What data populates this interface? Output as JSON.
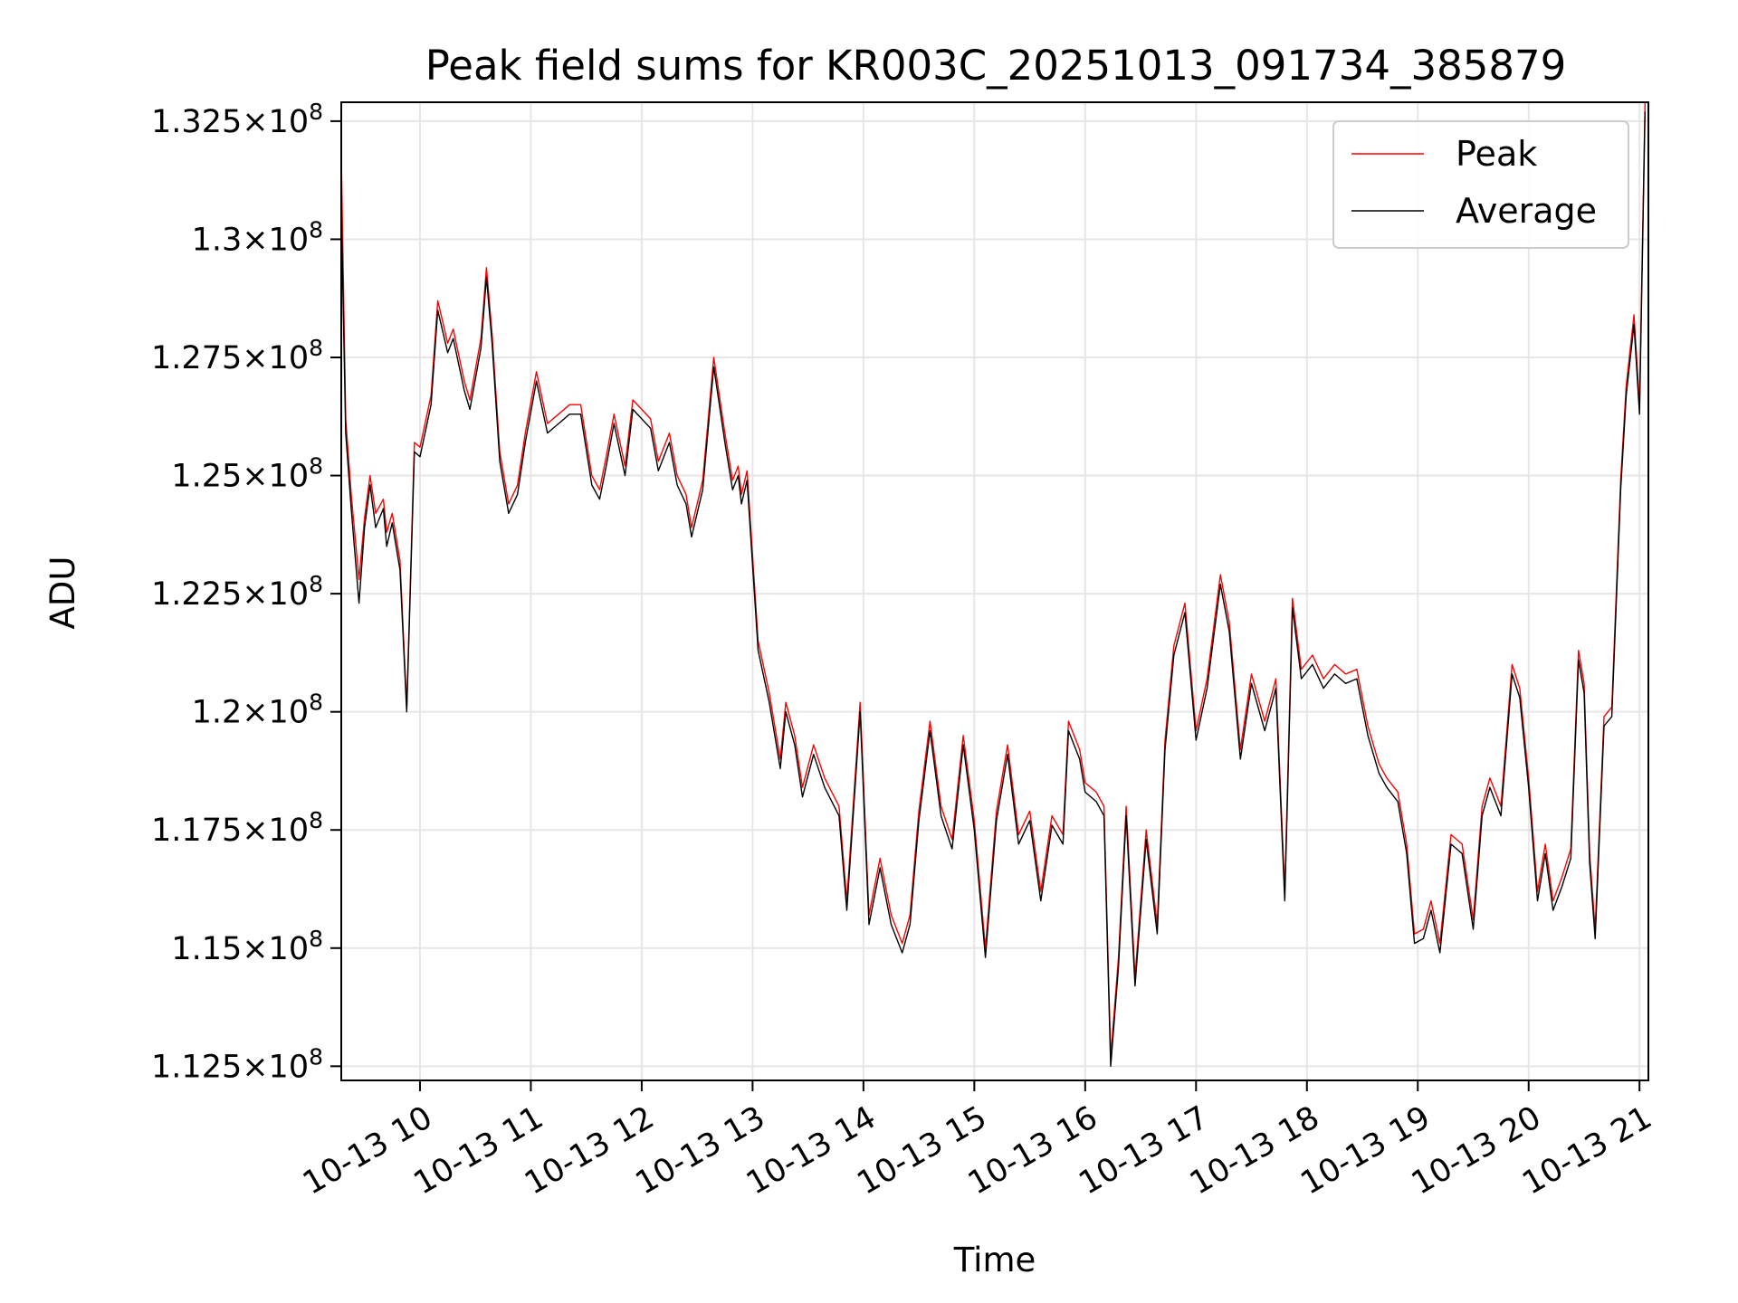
{
  "chart_data": {
    "type": "line",
    "title": "Peak field sums for KR003C_20251013_091734_385879",
    "xlabel": "Time",
    "ylabel": "ADU",
    "x_unit": "hours since 2025-10-13 00:00",
    "xlim": [
      9.29,
      21.08
    ],
    "ylim": [
      112200000,
      132900000
    ],
    "grid": true,
    "legend_position": "top-right",
    "x_ticks": [
      {
        "value": 10,
        "label": "10-13 10"
      },
      {
        "value": 11,
        "label": "10-13 11"
      },
      {
        "value": 12,
        "label": "10-13 12"
      },
      {
        "value": 13,
        "label": "10-13 13"
      },
      {
        "value": 14,
        "label": "10-13 14"
      },
      {
        "value": 15,
        "label": "10-13 15"
      },
      {
        "value": 16,
        "label": "10-13 16"
      },
      {
        "value": 17,
        "label": "10-13 17"
      },
      {
        "value": 18,
        "label": "10-13 18"
      },
      {
        "value": 19,
        "label": "10-13 19"
      },
      {
        "value": 20,
        "label": "10-13 20"
      },
      {
        "value": 21,
        "label": "10-13 21"
      }
    ],
    "y_ticks": [
      {
        "value": 112500000,
        "mantissa": "1.125"
      },
      {
        "value": 115000000,
        "mantissa": "1.15"
      },
      {
        "value": 117500000,
        "mantissa": "1.175"
      },
      {
        "value": 120000000,
        "mantissa": "1.2"
      },
      {
        "value": 122500000,
        "mantissa": "1.225"
      },
      {
        "value": 125000000,
        "mantissa": "1.25"
      },
      {
        "value": 127500000,
        "mantissa": "1.275"
      },
      {
        "value": 130000000,
        "mantissa": "1.3"
      },
      {
        "value": 132500000,
        "mantissa": "1.325"
      }
    ],
    "y_tick_suffix": "×10",
    "y_tick_exponent": "8",
    "x": [
      9.29,
      9.33,
      9.38,
      9.45,
      9.5,
      9.55,
      9.6,
      9.67,
      9.7,
      9.75,
      9.82,
      9.88,
      9.95,
      10.0,
      10.1,
      10.16,
      10.25,
      10.3,
      10.4,
      10.45,
      10.55,
      10.6,
      10.65,
      10.72,
      10.8,
      10.88,
      10.95,
      11.05,
      11.15,
      11.25,
      11.35,
      11.45,
      11.55,
      11.62,
      11.68,
      11.75,
      11.85,
      11.92,
      12.0,
      12.08,
      12.15,
      12.25,
      12.32,
      12.4,
      12.45,
      12.55,
      12.65,
      12.75,
      12.82,
      12.87,
      12.9,
      12.95,
      13.05,
      13.15,
      13.25,
      13.3,
      13.38,
      13.45,
      13.55,
      13.65,
      13.78,
      13.85,
      13.97,
      14.05,
      14.15,
      14.25,
      14.35,
      14.42,
      14.5,
      14.6,
      14.7,
      14.8,
      14.9,
      15.0,
      15.1,
      15.2,
      15.3,
      15.4,
      15.5,
      15.6,
      15.7,
      15.8,
      15.85,
      15.95,
      16.0,
      16.1,
      16.17,
      16.23,
      16.3,
      16.37,
      16.45,
      16.55,
      16.65,
      16.72,
      16.8,
      16.9,
      17.0,
      17.1,
      17.22,
      17.3,
      17.4,
      17.5,
      17.62,
      17.72,
      17.8,
      17.87,
      17.95,
      18.05,
      18.15,
      18.25,
      18.35,
      18.45,
      18.55,
      18.65,
      18.72,
      18.82,
      18.9,
      18.97,
      19.05,
      19.12,
      19.2,
      19.3,
      19.4,
      19.5,
      19.58,
      19.65,
      19.75,
      19.85,
      19.92,
      20.0,
      20.08,
      20.15,
      20.22,
      20.3,
      20.38,
      20.45,
      20.5,
      20.55,
      20.6,
      20.68,
      20.75,
      20.83,
      20.88,
      20.95,
      21.0,
      21.05
    ],
    "series": [
      {
        "name": "Peak",
        "color": "#ff0000",
        "values": [
          131800000,
          126200000,
          124600000,
          122800000,
          124100000,
          125000000,
          124200000,
          124500000,
          123800000,
          124200000,
          123200000,
          120100000,
          125700000,
          125600000,
          126700000,
          128700000,
          127800000,
          128100000,
          127000000,
          126600000,
          127900000,
          129400000,
          128000000,
          125500000,
          124400000,
          124800000,
          125900000,
          127200000,
          126100000,
          126300000,
          126500000,
          126500000,
          125000000,
          124700000,
          125400000,
          126300000,
          125200000,
          126600000,
          126400000,
          126200000,
          125300000,
          125900000,
          125000000,
          124600000,
          123900000,
          124900000,
          127500000,
          125900000,
          124900000,
          125200000,
          124600000,
          125100000,
          121500000,
          120400000,
          119000000,
          120200000,
          119500000,
          118400000,
          119300000,
          118600000,
          118000000,
          116000000,
          120200000,
          115700000,
          116900000,
          115700000,
          115100000,
          115700000,
          117900000,
          119800000,
          118000000,
          117300000,
          119500000,
          117700000,
          115000000,
          117900000,
          119300000,
          117400000,
          117900000,
          116200000,
          117800000,
          117400000,
          119800000,
          119200000,
          118500000,
          118300000,
          118000000,
          112700000,
          114800000,
          118000000,
          114400000,
          117500000,
          115500000,
          119400000,
          121400000,
          122300000,
          119600000,
          120700000,
          122900000,
          121900000,
          119200000,
          120800000,
          119800000,
          120700000,
          116200000,
          122400000,
          120900000,
          121200000,
          120700000,
          121000000,
          120800000,
          120900000,
          119700000,
          118900000,
          118600000,
          118300000,
          117200000,
          115300000,
          115400000,
          116000000,
          115100000,
          117400000,
          117200000,
          115600000,
          118000000,
          118600000,
          118000000,
          121000000,
          120500000,
          118600000,
          116200000,
          117200000,
          116000000,
          116500000,
          117100000,
          121300000,
          120600000,
          117000000,
          115400000,
          119900000,
          120100000,
          124900000,
          126900000,
          128400000,
          126500000,
          132900000
        ]
      },
      {
        "name": "Average",
        "color": "#000000",
        "values": [
          130700000,
          125900000,
          124300000,
          122300000,
          123900000,
          124800000,
          123900000,
          124300000,
          123500000,
          124000000,
          123000000,
          120000000,
          125500000,
          125400000,
          126500000,
          128500000,
          127600000,
          127900000,
          126800000,
          126400000,
          127700000,
          129200000,
          127800000,
          125300000,
          124200000,
          124600000,
          125700000,
          127000000,
          125900000,
          126100000,
          126300000,
          126300000,
          124800000,
          124500000,
          125200000,
          126100000,
          125000000,
          126400000,
          126200000,
          126000000,
          125100000,
          125700000,
          124800000,
          124400000,
          123700000,
          124700000,
          127300000,
          125700000,
          124700000,
          125000000,
          124400000,
          124900000,
          121300000,
          120200000,
          118800000,
          120000000,
          119300000,
          118200000,
          119100000,
          118400000,
          117800000,
          115800000,
          120000000,
          115500000,
          116700000,
          115500000,
          114900000,
          115500000,
          117700000,
          119600000,
          117800000,
          117100000,
          119300000,
          117500000,
          114800000,
          117700000,
          119100000,
          117200000,
          117700000,
          116000000,
          117600000,
          117200000,
          119600000,
          119000000,
          118300000,
          118100000,
          117800000,
          112500000,
          114600000,
          117800000,
          114200000,
          117300000,
          115300000,
          119200000,
          121200000,
          122100000,
          119400000,
          120500000,
          122700000,
          121700000,
          119000000,
          120600000,
          119600000,
          120500000,
          116000000,
          122200000,
          120700000,
          121000000,
          120500000,
          120800000,
          120600000,
          120700000,
          119500000,
          118700000,
          118400000,
          118100000,
          117000000,
          115100000,
          115200000,
          115800000,
          114900000,
          117200000,
          117000000,
          115400000,
          117800000,
          118400000,
          117800000,
          120800000,
          120300000,
          118400000,
          116000000,
          117000000,
          115800000,
          116300000,
          116900000,
          121100000,
          120400000,
          116800000,
          115200000,
          119700000,
          119900000,
          124700000,
          126700000,
          128200000,
          126300000,
          132700000
        ]
      }
    ]
  }
}
